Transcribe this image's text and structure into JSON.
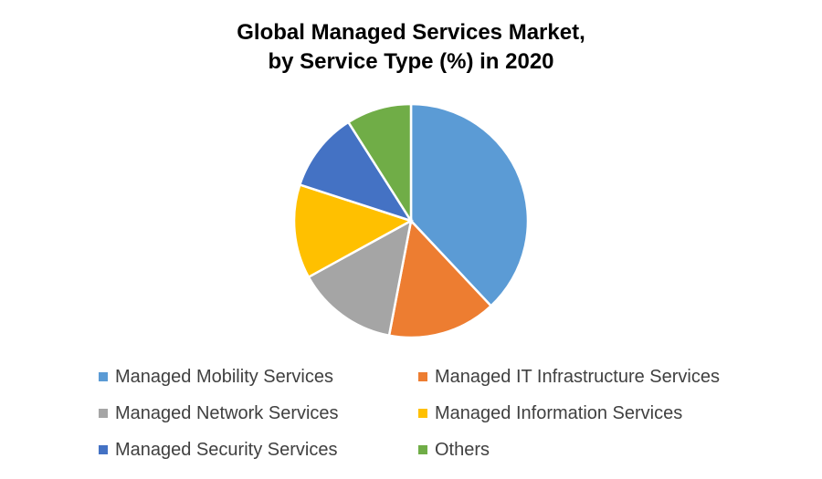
{
  "chart_data": {
    "type": "pie",
    "title_line1": "Global Managed Services Market,",
    "title_line2": "by Service Type (%) in 2020",
    "categories": [
      "Managed Mobility Services",
      "Managed IT Infrastructure Services",
      "Managed Network Services",
      "Managed Information Services",
      "Managed Security Services",
      "Others"
    ],
    "values": [
      38,
      15,
      14,
      13,
      11,
      9
    ],
    "colors": [
      "#5B9BD5",
      "#ED7D31",
      "#A5A5A5",
      "#FFC000",
      "#4472C4",
      "#70AD47"
    ],
    "legend_position": "bottom"
  }
}
